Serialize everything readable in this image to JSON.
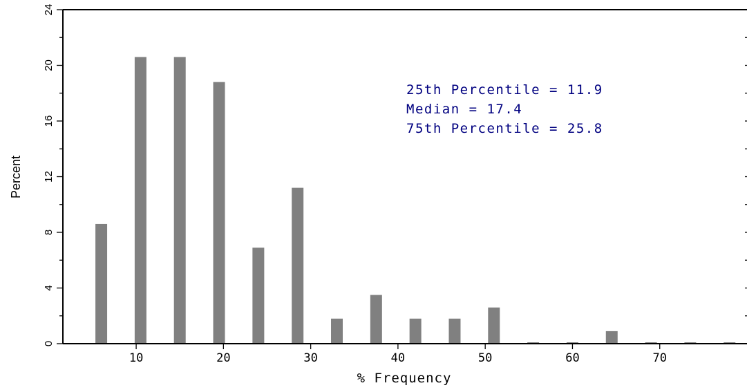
{
  "chart_data": {
    "type": "bar",
    "xlabel": "% Frequency",
    "ylabel": "Percent",
    "xlim": [
      1.6,
      80
    ],
    "ylim": [
      0,
      24
    ],
    "x_ticks": [
      10,
      20,
      30,
      40,
      50,
      60,
      70
    ],
    "y_ticks": [
      0,
      4,
      8,
      12,
      16,
      20,
      24
    ],
    "grid": false,
    "bar_color": "#808080",
    "annotation_color": "#000080",
    "annotations": [
      "25th Percentile = 11.9",
      "Median = 17.4",
      "75th Percentile = 25.8"
    ],
    "x": [
      6,
      10.5,
      15,
      19.5,
      24,
      28.5,
      33,
      37.5,
      42,
      46.5,
      51,
      55.5,
      60,
      64.5,
      69,
      73.5,
      78
    ],
    "values": [
      8.6,
      20.6,
      20.6,
      18.8,
      6.9,
      11.2,
      1.8,
      3.5,
      1.8,
      1.8,
      2.6,
      0.1,
      0.1,
      0.9,
      0.1,
      0.1,
      0.1
    ]
  }
}
